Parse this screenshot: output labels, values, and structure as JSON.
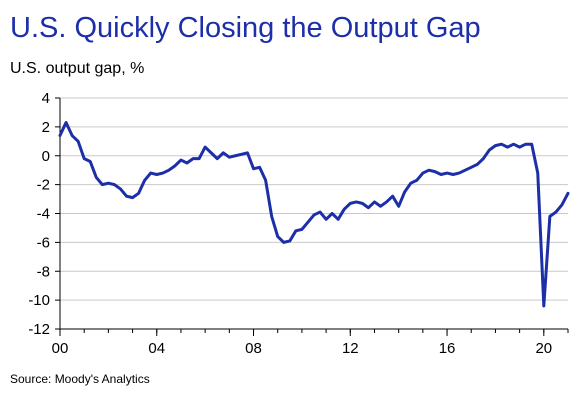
{
  "title": "U.S. Quickly Closing the Output Gap",
  "subtitle": "U.S. output gap, %",
  "source": "Source: Moody's Analytics",
  "colors": {
    "title": "#1c2fa8",
    "line": "#1c2fa8",
    "grid": "#c9c9c9",
    "axis": "#000000"
  },
  "chart_data": {
    "type": "line",
    "title": "U.S. Quickly Closing the Output Gap",
    "ylabel": "U.S. output gap, %",
    "xlabel": "",
    "xlim": [
      2000.0,
      2021.0
    ],
    "ylim": [
      -12,
      4
    ],
    "yticks": [
      4,
      2,
      0,
      -2,
      -4,
      -6,
      -8,
      -10,
      -12
    ],
    "xticks": [
      {
        "value": 2000,
        "label": "00"
      },
      {
        "value": 2004,
        "label": "04"
      },
      {
        "value": 2008,
        "label": "08"
      },
      {
        "value": 2012,
        "label": "12"
      },
      {
        "value": 2016,
        "label": "16"
      },
      {
        "value": 2020,
        "label": "20"
      }
    ],
    "grid": "horizontal",
    "series": [
      {
        "x": [
          2000.0,
          2000.25,
          2000.5,
          2000.75,
          2001.0,
          2001.25,
          2001.5,
          2001.75,
          2002.0,
          2002.25,
          2002.5,
          2002.75,
          2003.0,
          2003.25,
          2003.5,
          2003.75,
          2004.0,
          2004.25,
          2004.5,
          2004.75,
          2005.0,
          2005.25,
          2005.5,
          2005.75,
          2006.0,
          2006.25,
          2006.5,
          2006.75,
          2007.0,
          2007.25,
          2007.5,
          2007.75,
          2008.0,
          2008.25,
          2008.5,
          2008.75,
          2009.0,
          2009.25,
          2009.5,
          2009.75,
          2010.0,
          2010.25,
          2010.5,
          2010.75,
          2011.0,
          2011.25,
          2011.5,
          2011.75,
          2012.0,
          2012.25,
          2012.5,
          2012.75,
          2013.0,
          2013.25,
          2013.5,
          2013.75,
          2014.0,
          2014.25,
          2014.5,
          2014.75,
          2015.0,
          2015.25,
          2015.5,
          2015.75,
          2016.0,
          2016.25,
          2016.5,
          2016.75,
          2017.0,
          2017.25,
          2017.5,
          2017.75,
          2018.0,
          2018.25,
          2018.5,
          2018.75,
          2019.0,
          2019.25,
          2019.5,
          2019.75,
          2020.0,
          2020.25,
          2020.5,
          2020.75,
          2021.0
        ],
        "values": [
          1.4,
          2.3,
          1.4,
          1.0,
          -0.2,
          -0.4,
          -1.5,
          -2.0,
          -1.9,
          -2.0,
          -2.3,
          -2.8,
          -2.9,
          -2.6,
          -1.7,
          -1.2,
          -1.3,
          -1.2,
          -1.0,
          -0.7,
          -0.3,
          -0.5,
          -0.2,
          -0.2,
          0.6,
          0.2,
          -0.2,
          0.2,
          -0.1,
          0.0,
          0.1,
          0.2,
          -0.9,
          -0.8,
          -1.7,
          -4.2,
          -5.6,
          -6.0,
          -5.9,
          -5.2,
          -5.1,
          -4.6,
          -4.1,
          -3.9,
          -4.4,
          -4.0,
          -4.4,
          -3.7,
          -3.3,
          -3.2,
          -3.3,
          -3.6,
          -3.2,
          -3.5,
          -3.2,
          -2.8,
          -3.5,
          -2.5,
          -1.9,
          -1.7,
          -1.2,
          -1.0,
          -1.1,
          -1.3,
          -1.2,
          -1.3,
          -1.2,
          -1.0,
          -0.8,
          -0.6,
          -0.2,
          0.4,
          0.7,
          0.8,
          0.6,
          0.8,
          0.6,
          0.8,
          0.8,
          -1.2,
          -10.4,
          -4.2,
          -3.9,
          -3.4,
          -2.6
        ]
      }
    ]
  }
}
